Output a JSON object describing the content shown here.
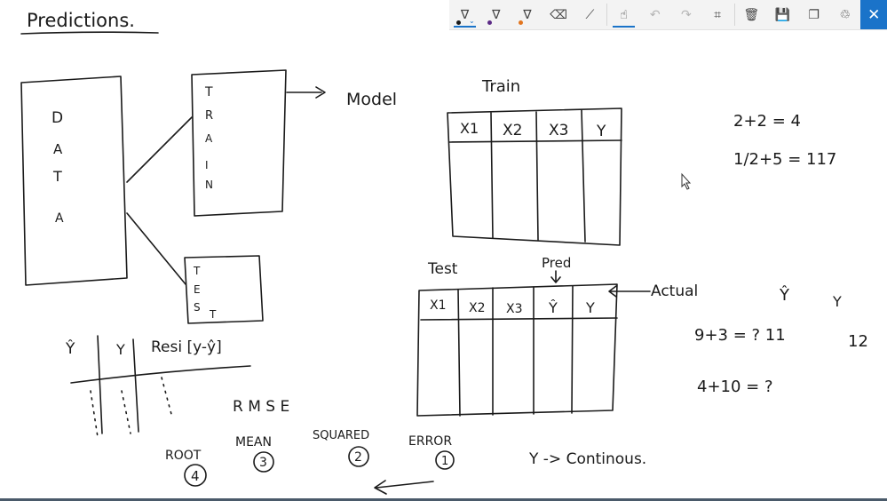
{
  "toolbar": {
    "items": [
      {
        "name": "ballpoint-pen-icon",
        "glyph": "∇",
        "dot": "#1a1a1a",
        "selected": true
      },
      {
        "name": "pencil-tool-icon",
        "glyph": "∇",
        "dot": "#5b2a86",
        "selected": false
      },
      {
        "name": "highlighter-icon",
        "glyph": "∇",
        "dot": "#e2751f",
        "selected": false
      },
      {
        "name": "eraser-icon",
        "glyph": "⌫",
        "selected": false
      },
      {
        "name": "ruler-icon",
        "glyph": "⟋",
        "selected": false
      },
      {
        "name": "touch-writing-icon",
        "glyph": "☝",
        "selected": true
      },
      {
        "name": "undo-icon",
        "glyph": "↶",
        "selected": false,
        "disabled": true
      },
      {
        "name": "redo-icon",
        "glyph": "↷",
        "selected": false,
        "disabled": true
      },
      {
        "name": "crop-icon",
        "glyph": "⌗",
        "selected": false
      },
      {
        "name": "delete-icon",
        "glyph": "🗑",
        "selected": false
      },
      {
        "name": "save-icon",
        "glyph": "💾",
        "selected": false
      },
      {
        "name": "copy-icon",
        "glyph": "❐",
        "selected": false
      },
      {
        "name": "share-icon",
        "glyph": "♲",
        "selected": false
      },
      {
        "name": "close-icon",
        "glyph": "✕",
        "selected": false
      }
    ]
  },
  "notes": {
    "title": "Predictions.",
    "data_letters": [
      "D",
      "A",
      "T",
      "A"
    ],
    "train_letters": [
      "T",
      "R",
      "A",
      "I",
      "N"
    ],
    "test_letters": [
      "T",
      "E",
      "S",
      "T"
    ],
    "model": "Model",
    "arrow_to_model": "——>",
    "train_title": "Train",
    "train_headers": [
      "X1",
      "X2",
      "X3",
      "Y"
    ],
    "test_title": "Test",
    "pred_label": "Pred",
    "actual_label": "Actual",
    "test_headers": [
      "X1",
      "X2",
      "X3",
      "Ŷ",
      "Y"
    ],
    "eq1": "2+2 = 4",
    "eq2": "1/2+5 = 117",
    "eq3": "9+3 = ? 11",
    "eq3_val": "12",
    "eq4": "4+10 = ?",
    "yhat_top": "Ŷ",
    "y_top": "Y",
    "resi_header": "Resi [y-ŷ]",
    "yhat_col": "Ŷ",
    "y_col": "Y",
    "rmse": "R M S E",
    "rmse_words": [
      {
        "word": "ROOT",
        "num": "4"
      },
      {
        "word": "MEAN",
        "num": "3"
      },
      {
        "word": "SQUARED",
        "num": "2"
      },
      {
        "word": "ERROR",
        "num": "1"
      }
    ],
    "continuous": "Y -> Continous."
  }
}
